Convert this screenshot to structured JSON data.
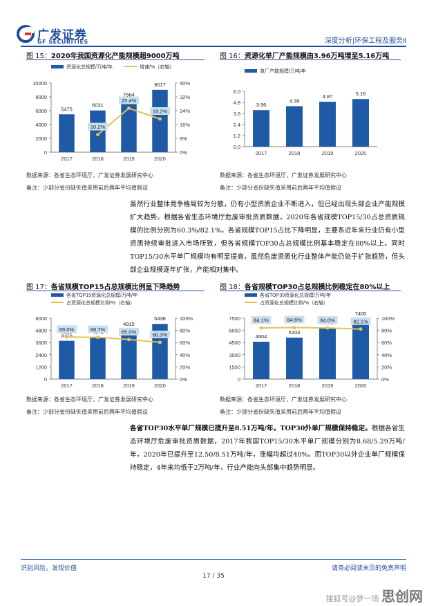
{
  "header": {
    "brand_cn": "广发证券",
    "brand_en": "GF SECURITIES",
    "section": "深度分析|环保工程及服务Ⅱ"
  },
  "figures": [
    {
      "label": "图  15：",
      "title": "2020年我国资源化产能规模超9000万吨",
      "source": "数据来源：各省生态环境厅，广发证券发展研究中心",
      "remark": "备注：少部分省份缺失值采用前后两年平均值假设"
    },
    {
      "label": "图  16：",
      "title": "资源化单厂产能规模由3.96万吨增至5.16万吨",
      "source": "数据来源：各省生态环境厅，广发证券发展研究中心",
      "remark": "备注：少部分省份缺失值采用前后两年平均值假设"
    },
    {
      "label": "图  17：",
      "title": "各省规模TOP15占总规模比例呈下降趋势",
      "source": "数据来源：各省生态环境厅，广发证券发展研究中心",
      "remark": "备注：少部分省份缺失值采用前后两年平均值假设"
    },
    {
      "label": "图  18：",
      "title": "各省规模TOP30占总规模比例稳定在80%以上",
      "source": "数据来源：各省生态环境厅，广发证券发展研究中心",
      "remark": "备注：少部分省份缺失值采用前后两年平均值假设"
    }
  ],
  "paragraph1": "虽然行业整体竞争格局较为分散，仍有小型资质企业不断进入，但已经出现头部企业产能规模扩大趋势。根据各省生态环境厅危废审批资质数据，2020年各省规模TOP15/30占总资质规模的比例分别为60.3%/82.1%。各省规模TOP15占比下降明显，主要系近年来行业仍有小型资质持续审批进入市场所致，但各省规模TOP30占总规模比例基本稳定在80%以上。同时TOP15/30水平单厂规模均有明显提高，虽然危废资质化行业整体产能仍处于扩张趋势，但头部企业规模逐年扩张，产能相对集中。",
  "paragraph2": {
    "bold": "各省TOP30水平单厂规模已提升至8.51万吨/年，TOP30外单厂规模保持稳定。",
    "text": "根据各省生态环境厅危废审批资质数据，2017年我国TOP15/30水平单厂规模分别为8.68/5.29万吨/年，2020年已提升至12.50/8.51万吨/年，涨幅均超过40%。而TOP30以外企业单厂规模保持稳定，4年来均低于2万吨/年，行业产能向头部集中趋势明显。"
  },
  "footer": {
    "left": "识别风险，发现价值",
    "right": "请务必阅读末页的免责声明",
    "page": "17 / 35"
  },
  "watermark": {
    "big": "思创网",
    "small": "搜狐号@梦一场"
  },
  "colors": {
    "brand": "#1f4e9c",
    "bar": "#1f5aa6",
    "line": "#e2c25a",
    "label_bg": "#c8dff2"
  },
  "chart_data": [
    {
      "type": "bar",
      "categories": [
        "2017",
        "2018",
        "2019",
        "2020"
      ],
      "series": [
        {
          "name": "资源化总规模/万吨/年",
          "values": [
            5475,
            6031,
            7564,
            9017
          ],
          "labels": [
            "5475",
            "6031",
            "7564",
            "9017"
          ]
        },
        {
          "name": "增速/%（右轴）",
          "kind": "line",
          "axis": "right",
          "values": [
            null,
            10.2,
            25.4,
            19.2
          ],
          "labels": [
            "",
            "10.2%",
            "25.4%",
            "19.2%"
          ]
        }
      ],
      "ylim": [
        0,
        10000
      ],
      "yticks": [
        "0",
        "2000",
        "4000",
        "6000",
        "8000",
        "10000"
      ],
      "y2lim": [
        0,
        40
      ],
      "y2ticks": [
        "0%",
        "8%",
        "16%",
        "24%",
        "32%",
        "40%"
      ]
    },
    {
      "type": "bar",
      "categories": [
        "2017",
        "2018",
        "2019",
        "2020"
      ],
      "series": [
        {
          "name": "单厂产能规模/万吨/年",
          "values": [
            3.96,
            4.39,
            4.87,
            5.16
          ],
          "labels": [
            "3.96",
            "4.39",
            "4.87",
            "5.16"
          ]
        }
      ],
      "ylim": [
        0,
        6
      ],
      "yticks": [
        "0.0",
        "1.2",
        "2.4",
        "3.6",
        "4.8",
        "6.0"
      ]
    },
    {
      "type": "bar",
      "categories": [
        "2017",
        "2018",
        "2019",
        "2020"
      ],
      "series": [
        {
          "name": "各省TOP15资源化总规模/万吨/年",
          "values": [
            3775,
            4141,
            4915,
            5438
          ],
          "labels": [
            "3775",
            "4141",
            "4915",
            "5438"
          ]
        },
        {
          "name": "占资源化总规模比例/%（右轴）",
          "kind": "line",
          "axis": "right",
          "values": [
            69.0,
            68.7,
            65.0,
            60.3
          ],
          "labels": [
            "69.0%",
            "68.7%",
            "65.0%",
            "60.3%"
          ]
        }
      ],
      "ylim": [
        0,
        6000
      ],
      "yticks": [
        "0",
        "1200",
        "2400",
        "3600",
        "4800",
        "6000"
      ],
      "y2lim": [
        0,
        100
      ],
      "y2ticks": [
        "0%",
        "20%",
        "40%",
        "60%",
        "80%",
        "100%"
      ]
    },
    {
      "type": "bar",
      "categories": [
        "2017",
        "2018",
        "2019",
        "2020"
      ],
      "series": [
        {
          "name": "各省TOP30资源化总规模/万吨/年",
          "values": [
            4604,
            5103,
            6351,
            7400
          ],
          "labels": [
            "4604",
            "5103",
            "6351",
            "7400"
          ]
        },
        {
          "name": "占资源化总规模比例/%（右轴）",
          "kind": "line",
          "axis": "right",
          "values": [
            84.1,
            84.6,
            84.0,
            82.1
          ],
          "labels": [
            "84.1%",
            "84.6%",
            "84.0%",
            "82.1%"
          ]
        }
      ],
      "ylim": [
        0,
        7500
      ],
      "yticks": [
        "0",
        "1500",
        "3000",
        "4500",
        "6000",
        "7500"
      ],
      "y2lim": [
        0,
        100
      ],
      "y2ticks": [
        "0%",
        "20%",
        "40%",
        "60%",
        "80%",
        "100%"
      ]
    }
  ]
}
